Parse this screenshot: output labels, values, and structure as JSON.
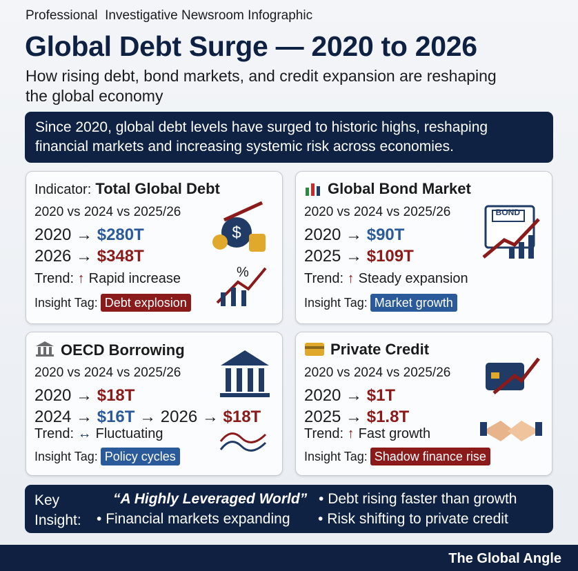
{
  "header": {
    "kicker": "Professional  Investigative Newsroom Infographic",
    "title": "Global Debt Surge — 2020 to 2026",
    "subtitle": "How rising debt, bond markets, and credit expansion are reshaping the global economy"
  },
  "summary": "Since 2020, global debt levels have surged to historic highs, reshaping financial markets and increasing systemic risk across economies.",
  "cards": [
    {
      "indicator_label": "Indicator:",
      "title": "Total Global Debt",
      "period": "2020 vs 2024 vs 2025/26",
      "lines": [
        [
          {
            "text": "2020 →"
          },
          {
            "text": "$280T",
            "color": "#2b5a9a"
          }
        ],
        [
          {
            "text": "2026 →"
          },
          {
            "text": "$348T",
            "color": "#8b1a1a"
          }
        ]
      ],
      "trend_label": "Trend:",
      "trend_icon": "↑",
      "trend": "Rapid increase",
      "tag_label": "Insight Tag:",
      "tag": "Debt explosion",
      "tag_color": "#8b1a1a"
    },
    {
      "title": "Global Bond Market",
      "period": "2020 vs 2024 vs 2025/26",
      "lines": [
        [
          {
            "text": "2020 →"
          },
          {
            "text": "$90T",
            "color": "#2b5a9a"
          }
        ],
        [
          {
            "text": "2025 →"
          },
          {
            "text": "$109T",
            "color": "#8b1a1a"
          }
        ]
      ],
      "trend_label": "Trend:",
      "trend_icon": "↑",
      "trend": "Steady expansion",
      "tag_label": "Insight Tag:",
      "tag": "Market growth",
      "tag_color": "#2b5a9a",
      "icon_label": "BOND"
    },
    {
      "title": "OECD Borrowing",
      "period": "2020 vs 2024 vs 2025/26",
      "lines": [
        [
          {
            "text": "2020 →"
          },
          {
            "text": "$18T",
            "color": "#8b1a1a"
          }
        ],
        [
          {
            "text": "2024 →"
          },
          {
            "text": "$16T",
            "color": "#2b5a9a"
          },
          {
            "text": "→ 2026 →"
          },
          {
            "text": "$18T",
            "color": "#8b1a1a"
          }
        ]
      ],
      "trend_label": "Trend:",
      "trend_icon": "↔",
      "trend": "Fluctuating",
      "tag_label": "Insight Tag:",
      "tag": "Policy cycles",
      "tag_color": "#2b5a9a"
    },
    {
      "title": "Private Credit",
      "period": "2020 vs 2024 vs 2025/26",
      "lines": [
        [
          {
            "text": "2020 →"
          },
          {
            "text": "$1T",
            "color": "#8b1a1a"
          }
        ],
        [
          {
            "text": "2025 →"
          },
          {
            "text": "$1.8T",
            "color": "#8b1a1a"
          }
        ]
      ],
      "trend_label": "Trend:",
      "trend_icon": "↑",
      "trend": "Fast growth",
      "tag_label": "Insight Tag:",
      "tag": "Shadow finance rise",
      "tag_color": "#8b1a1a"
    }
  ],
  "key_insight": {
    "label": "Key Insight:",
    "quote": "“A Highly Leveraged World”",
    "points": [
      "Debt rising faster than growth",
      "Financial markets expanding",
      "Risk shifting to private credit"
    ]
  },
  "footer": {
    "brand": "The Global Angle"
  }
}
